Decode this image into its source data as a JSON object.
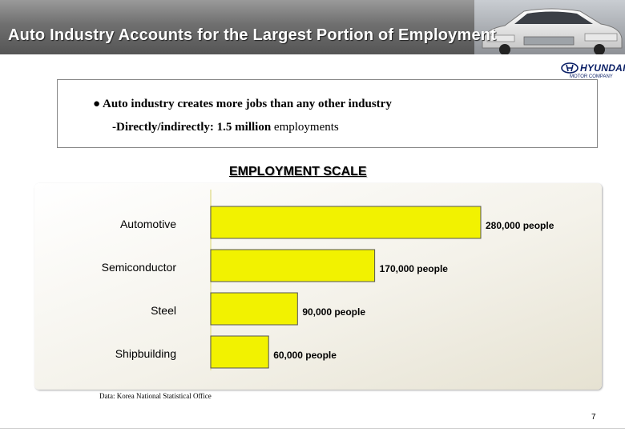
{
  "header": {
    "title": "Auto Industry Accounts for the Largest Portion of Employment"
  },
  "logo": {
    "brand": "HYUNDAI",
    "subtitle": "MOTOR COMPANY"
  },
  "info": {
    "bullet_main": "● Auto industry creates more jobs than any other industry",
    "bullet_sub_bold": "-Directly/indirectly: 1.5 million",
    "bullet_sub_rest": " employments"
  },
  "section_title": "EMPLOYMENT SCALE",
  "chart_data": {
    "type": "bar",
    "orientation": "horizontal",
    "title": "EMPLOYMENT SCALE",
    "categories": [
      "Automotive",
      "Semiconductor",
      "Steel",
      "Shipbuilding"
    ],
    "values": [
      280000,
      170000,
      90000,
      60000
    ],
    "data_labels": [
      "280,000 people",
      "170,000 people",
      "90,000 people",
      "60,000 people"
    ],
    "unit": "people",
    "xlim": [
      0,
      280000
    ],
    "bar_color": "#f2f200",
    "grid": false,
    "legend": "none"
  },
  "source": "Data: Korea National Statistical Office",
  "page_number": "7"
}
